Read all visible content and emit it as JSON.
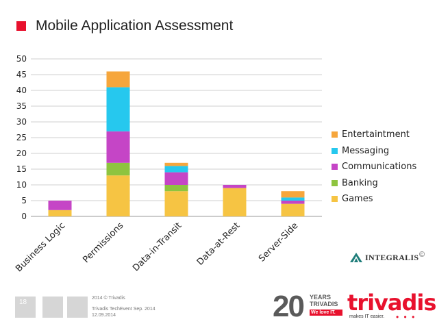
{
  "header": {
    "title": "Mobile Application Assessment"
  },
  "colors": {
    "accent": "#e8112d",
    "Entertaintment": "#f6a63c",
    "Messaging": "#26c8ee",
    "Communications": "#c545c6",
    "Banking": "#8ec43f",
    "Games": "#f6c443"
  },
  "chart_data": {
    "type": "bar",
    "stacked": true,
    "categories": [
      "Business Logic",
      "Permissions",
      "Data-in-Transit",
      "Data-at-Rest",
      "Server-Side"
    ],
    "series": [
      {
        "name": "Games",
        "values": [
          2,
          13,
          8,
          9,
          4
        ]
      },
      {
        "name": "Banking",
        "values": [
          0,
          4,
          2,
          0,
          0
        ]
      },
      {
        "name": "Communications",
        "values": [
          3,
          10,
          4,
          1,
          1
        ]
      },
      {
        "name": "Messaging",
        "values": [
          0,
          14,
          2,
          0,
          1
        ]
      },
      {
        "name": "Entertaintment",
        "values": [
          0,
          5,
          1,
          0,
          2
        ]
      }
    ],
    "legend_order": [
      "Entertaintment",
      "Messaging",
      "Communications",
      "Banking",
      "Games"
    ],
    "ylim": [
      0,
      50
    ],
    "yticks": [
      0,
      5,
      10,
      15,
      20,
      25,
      30,
      35,
      40,
      45,
      50
    ],
    "grid": true,
    "legend_position": "right"
  },
  "logo": {
    "name": "INTEGRALIS",
    "copyright": "©"
  },
  "footer": {
    "slide_number": "18",
    "line1": "2014 © Trivadis",
    "line2": "Trivadis TechEvent Sep. 2014",
    "line3": "12.09.2014",
    "years_number": "20",
    "years_word": "YEARS",
    "trivadis_small": "TRIVADIS",
    "we_love": "We love IT.",
    "brand": "trivadis",
    "tagline": "makes IT easier.",
    "dots": "• • •"
  }
}
